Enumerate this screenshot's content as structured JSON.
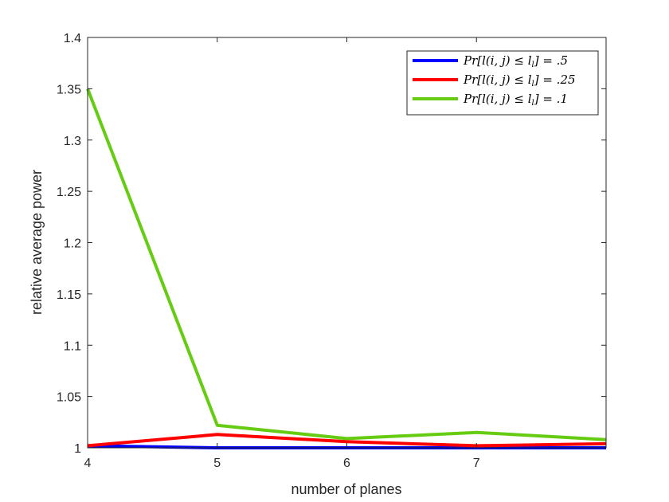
{
  "chart_data": {
    "type": "line",
    "title": "",
    "xlabel": "number of planes",
    "ylabel": "relative average power",
    "xlim": [
      4,
      8
    ],
    "ylim": [
      1,
      1.4
    ],
    "xticks": [
      4,
      5,
      6,
      7
    ],
    "xtick_labels": [
      "4",
      "5",
      "6",
      "7"
    ],
    "yticks": [
      1,
      1.05,
      1.1,
      1.15,
      1.2,
      1.25,
      1.3,
      1.35,
      1.4
    ],
    "ytick_labels": [
      "1",
      "1.05",
      "1.1",
      "1.15",
      "1.2",
      "1.25",
      "1.3",
      "1.35",
      "1.4"
    ],
    "grid": false,
    "legend_position": "top-right",
    "x": [
      4,
      5,
      6,
      7,
      8
    ],
    "series": [
      {
        "name": "Pr[l(i, j) ≤ l_l] = .5",
        "legend_main": "Pr[l(i, j) ≤ l",
        "legend_sub": "l",
        "legend_tail": "] = .5",
        "color": "#0000ff",
        "values": [
          1.002,
          1.0,
          1.0,
          1.0,
          1.0
        ]
      },
      {
        "name": "Pr[l(i, j) ≤ l_l] = .25",
        "legend_main": "Pr[l(i, j) ≤ l",
        "legend_sub": "l",
        "legend_tail": "] = .25",
        "color": "#ff0000",
        "values": [
          1.002,
          1.013,
          1.006,
          1.002,
          1.004
        ]
      },
      {
        "name": "Pr[l(i, j) ≤ l_l] = .1",
        "legend_main": "Pr[l(i, j) ≤ l",
        "legend_sub": "l",
        "legend_tail": "] = .1",
        "color": "#66cc11",
        "values": [
          1.35,
          1.022,
          1.009,
          1.015,
          1.008
        ]
      }
    ]
  }
}
